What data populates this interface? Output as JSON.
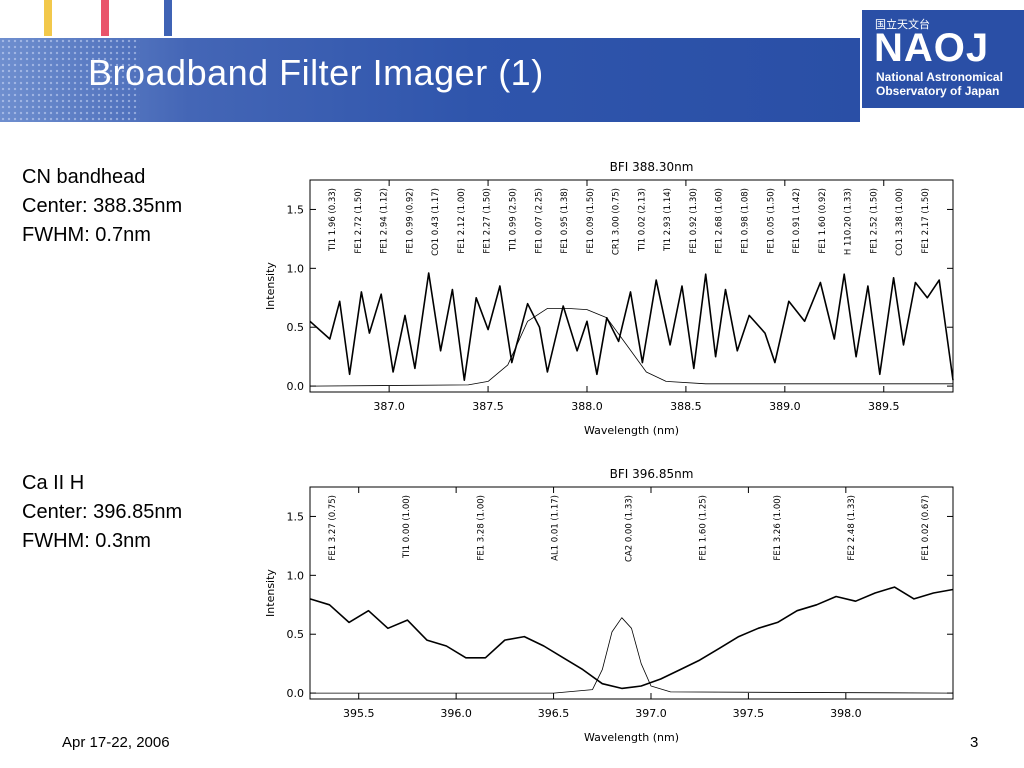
{
  "slide": {
    "title": "Broadband Filter Imager (1)",
    "footer_date": "Apr 17-22, 2006",
    "page_number": "3",
    "theme_color": "#2a4fa6",
    "accent_colors": [
      "#f2c84b",
      "#e9546b",
      "#3f63b5"
    ]
  },
  "logo": {
    "japanese": "国立天文台",
    "mark": "NAOJ",
    "line1": "National Astronomical",
    "line2": "Observatory of Japan"
  },
  "panels": [
    {
      "name": "CN bandhead",
      "center": "Center: 388.35nm",
      "fwhm": "FWHM: 0.7nm"
    },
    {
      "name": "Ca II H",
      "center": "Center: 396.85nm",
      "fwhm": "FWHM: 0.3nm"
    }
  ],
  "chart_data": [
    {
      "type": "line",
      "title": "BFI 388.30nm",
      "xlabel": "Wavelength (nm)",
      "ylabel": "Intensity",
      "xlim": [
        386.6,
        389.85
      ],
      "ylim": [
        -0.05,
        1.75
      ],
      "xticks": [
        "387.0",
        "387.5",
        "388.0",
        "388.5",
        "389.0",
        "389.5"
      ],
      "yticks": [
        "0.0",
        "0.5",
        "1.0",
        "1.5"
      ],
      "line_ids": [
        "TI1 1.96 (0.33)",
        "FE1 2.72 (1.50)",
        "FE1 2.94 (1.12)",
        "FE1 0.99 (0.92)",
        "CO1 0.43 (1.17)",
        "FE1 2.12 (1.00)",
        "FE1 2.27 (1.50)",
        "TI1 0.99 (2.50)",
        "FE1 0.07 (2.25)",
        "FE1 0.95 (1.38)",
        "FE1 0.09 (1.50)",
        "CR1 3.00 (0.75)",
        "TI1 0.02 (2.13)",
        "TI1 2.93 (1.14)",
        "FE1 0.92 (1.30)",
        "FE1 2.68 (1.60)",
        "FE1 0.98 (1.08)",
        "FE1 0.05 (1.50)",
        "FE1 0.91 (1.42)",
        "FE1 1.60 (0.92)",
        "H 110.20 (1.33)",
        "FE1 2.52 (1.50)",
        "CO1 3.38 (1.00)",
        "FE1 2.17 (1.50)"
      ],
      "series": [
        {
          "style": "thick",
          "x": [
            386.6,
            386.7,
            386.75,
            386.8,
            386.86,
            386.9,
            386.96,
            387.02,
            387.08,
            387.13,
            387.2,
            387.26,
            387.32,
            387.38,
            387.44,
            387.5,
            387.56,
            387.62,
            387.7,
            387.76,
            387.8,
            387.88,
            387.95,
            388.0,
            388.05,
            388.1,
            388.16,
            388.22,
            388.28,
            388.35,
            388.42,
            388.48,
            388.54,
            388.6,
            388.65,
            388.7,
            388.76,
            388.82,
            388.9,
            388.95,
            389.02,
            389.1,
            389.18,
            389.25,
            389.3,
            389.36,
            389.42,
            389.48,
            389.55,
            389.6,
            389.66,
            389.72,
            389.78,
            389.85
          ],
          "values": [
            0.55,
            0.4,
            0.72,
            0.1,
            0.8,
            0.45,
            0.78,
            0.12,
            0.6,
            0.15,
            0.96,
            0.3,
            0.82,
            0.05,
            0.75,
            0.48,
            0.85,
            0.2,
            0.7,
            0.5,
            0.12,
            0.68,
            0.3,
            0.55,
            0.1,
            0.58,
            0.38,
            0.8,
            0.2,
            0.9,
            0.35,
            0.85,
            0.15,
            0.95,
            0.25,
            0.82,
            0.3,
            0.6,
            0.45,
            0.2,
            0.72,
            0.55,
            0.88,
            0.4,
            0.95,
            0.25,
            0.85,
            0.1,
            0.92,
            0.35,
            0.88,
            0.75,
            0.9,
            0.05
          ]
        },
        {
          "style": "thin",
          "x": [
            386.6,
            387.4,
            387.5,
            387.6,
            387.7,
            387.8,
            387.9,
            388.0,
            388.1,
            388.2,
            388.3,
            388.4,
            388.6,
            388.9,
            389.5,
            389.85
          ],
          "values": [
            0.0,
            0.01,
            0.04,
            0.18,
            0.55,
            0.66,
            0.66,
            0.65,
            0.58,
            0.35,
            0.12,
            0.04,
            0.02,
            0.02,
            0.02,
            0.02
          ]
        }
      ]
    },
    {
      "type": "line",
      "title": "BFI 396.85nm",
      "xlabel": "Wavelength (nm)",
      "ylabel": "Intensity",
      "xlim": [
        395.25,
        398.55
      ],
      "ylim": [
        -0.05,
        1.75
      ],
      "xticks": [
        "395.5",
        "396.0",
        "396.5",
        "397.0",
        "397.5",
        "398.0"
      ],
      "yticks": [
        "0.0",
        "0.5",
        "1.0",
        "1.5"
      ],
      "line_ids": [
        "FE1 3.27 (0.75)",
        "TI1 0.00 (1.00)",
        "FE1 3.28 (1.00)",
        "AL1 0.01 (1.17)",
        "CA2 0.00 (1.33)",
        "FE1 1.60 (1.25)",
        "FE1 3.26 (1.00)",
        "FE2 2.48 (1.33)",
        "FE1 0.02 (0.67)"
      ],
      "series": [
        {
          "style": "thick",
          "x": [
            395.25,
            395.35,
            395.45,
            395.55,
            395.65,
            395.75,
            395.85,
            395.95,
            396.05,
            396.15,
            396.25,
            396.35,
            396.45,
            396.55,
            396.65,
            396.75,
            396.85,
            396.95,
            397.05,
            397.15,
            397.25,
            397.35,
            397.45,
            397.55,
            397.65,
            397.75,
            397.85,
            397.95,
            398.05,
            398.15,
            398.25,
            398.35,
            398.45,
            398.55
          ],
          "values": [
            0.8,
            0.75,
            0.6,
            0.7,
            0.55,
            0.62,
            0.45,
            0.4,
            0.3,
            0.3,
            0.45,
            0.48,
            0.4,
            0.3,
            0.2,
            0.08,
            0.04,
            0.06,
            0.12,
            0.2,
            0.28,
            0.38,
            0.48,
            0.55,
            0.6,
            0.7,
            0.75,
            0.82,
            0.78,
            0.85,
            0.9,
            0.8,
            0.85,
            0.88
          ]
        },
        {
          "style": "thin",
          "x": [
            395.25,
            396.5,
            396.7,
            396.75,
            396.8,
            396.85,
            396.9,
            396.95,
            397.0,
            397.1,
            398.55
          ],
          "values": [
            0.0,
            0.0,
            0.03,
            0.2,
            0.52,
            0.64,
            0.55,
            0.25,
            0.06,
            0.01,
            0.0
          ]
        }
      ]
    }
  ]
}
